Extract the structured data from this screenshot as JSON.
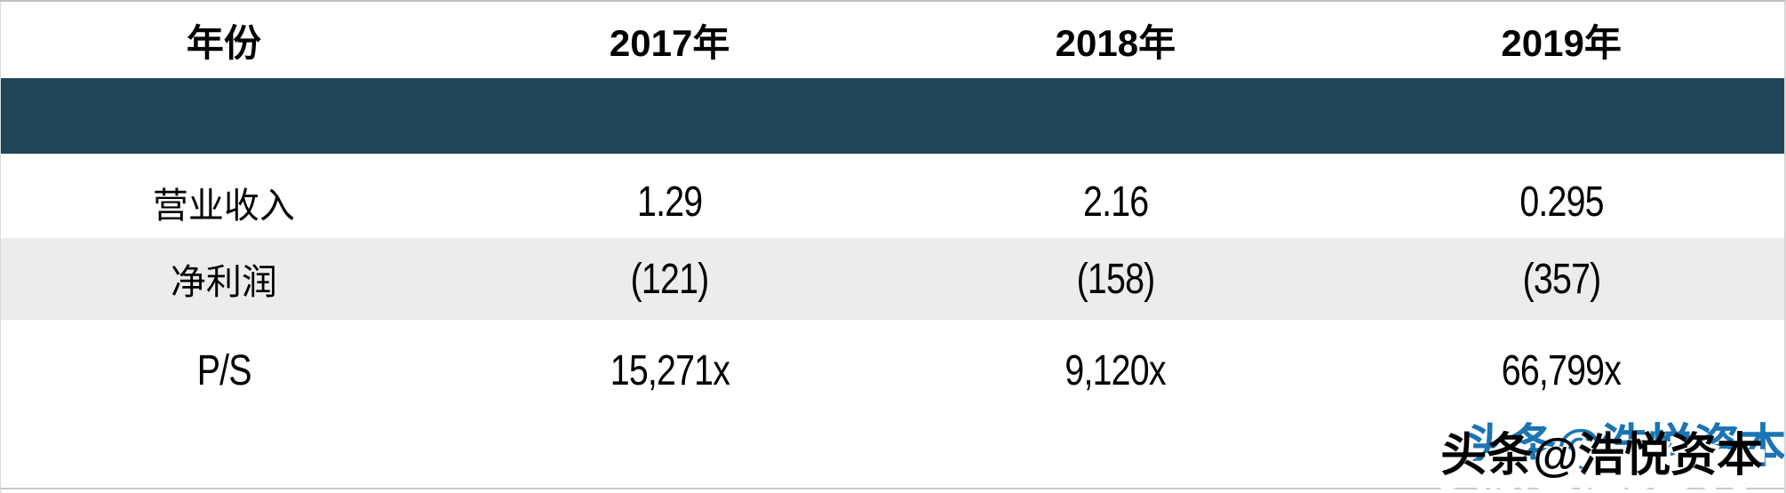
{
  "chart_data": {
    "type": "table",
    "title": "",
    "columns": [
      "年份",
      "2017年",
      "2018年",
      "2019年"
    ],
    "rows": [
      [
        "营业收入",
        "1.29",
        "2.16",
        "0.295"
      ],
      [
        "净利润",
        "(121)",
        "(158)",
        "(357)"
      ],
      [
        "P/S",
        "15,271x",
        "9,120x",
        "66,799x"
      ]
    ],
    "section_band_label": "",
    "layout_hints": {
      "equal_column_widths": true,
      "striped_row_index": 1,
      "empty_dark_band_below_header": true
    }
  },
  "watermark": {
    "front_text": "头条@浩悦资本",
    "back_text": "头条@浩悦资本"
  },
  "colors": {
    "band_bg": "#204559",
    "stripe_bg": "#ECECEC",
    "watermark_blue": "#1B74B4",
    "text": "#000000"
  }
}
